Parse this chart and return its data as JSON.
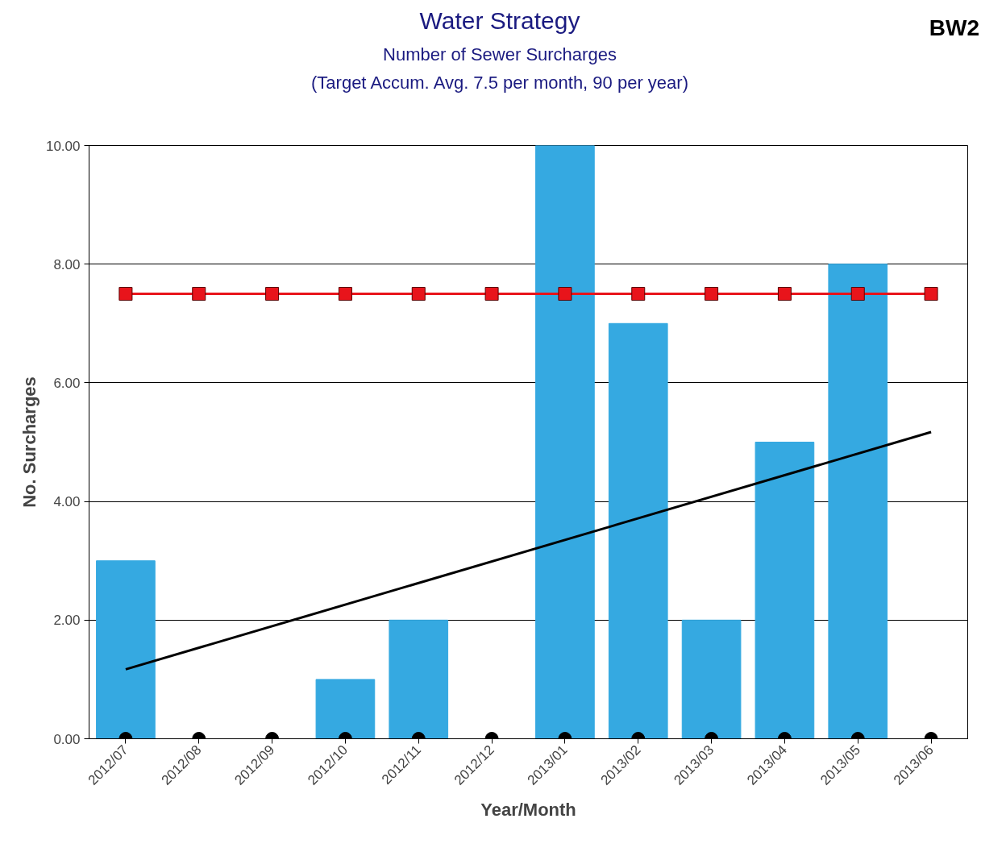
{
  "chart_data": {
    "type": "bar",
    "title": "Water Strategy",
    "subtitle": "Number of Sewer Surcharges\n(Target Accum. Avg. 7.5 per month, 90 per year)",
    "xlabel": "Year/Month",
    "ylabel": "No. Surcharges",
    "annotations": [
      "BW2"
    ],
    "categories": [
      "2012/07",
      "2012/08",
      "2012/09",
      "2012/10",
      "2012/11",
      "2012/12",
      "2013/01",
      "2013/02",
      "2013/03",
      "2013/04",
      "2013/05",
      "2013/06"
    ],
    "series": [
      {
        "color": "#35a9e1",
        "values": [
          3,
          0,
          0,
          1,
          2,
          0,
          10,
          7,
          2,
          5,
          8,
          0
        ]
      },
      {
        "type": "line",
        "color": "#e8141b",
        "marker": "square",
        "values": [
          7.5,
          7.5,
          7.5,
          7.5,
          7.5,
          7.5,
          7.5,
          7.5,
          7.5,
          7.5,
          7.5,
          7.5
        ]
      },
      {
        "type": "line",
        "color": "#000000",
        "x": [
          "2012/07",
          "2013/06"
        ],
        "values": [
          1.17,
          5.17
        ]
      },
      {
        "type": "scatter",
        "color": "#000000",
        "marker": "circle",
        "values": [
          0,
          0,
          0,
          0,
          0,
          0,
          0,
          0,
          0,
          0,
          0,
          0
        ]
      }
    ],
    "ylim": [
      0,
      10
    ],
    "yticks": [
      {
        "value": 0,
        "label": "0.00"
      },
      {
        "value": 2,
        "label": "2.00"
      },
      {
        "value": 4,
        "label": "4.00"
      },
      {
        "value": 6,
        "label": "6.00"
      },
      {
        "value": 8,
        "label": "8.00"
      },
      {
        "value": 10,
        "label": "10.00"
      }
    ],
    "grid": "y"
  }
}
